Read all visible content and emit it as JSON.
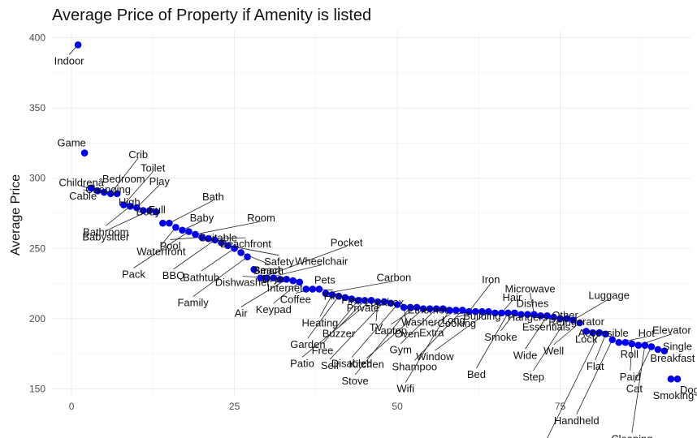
{
  "chart_data": {
    "type": "scatter",
    "title": "Average Price of Property if Amenity is listed",
    "xlabel": "",
    "ylabel": "Average Price",
    "xlim": [
      -3,
      95
    ],
    "ylim": [
      145,
      405
    ],
    "x_ticks": [
      0,
      25,
      50,
      75
    ],
    "y_ticks": [
      150,
      200,
      250,
      300,
      350,
      400
    ],
    "grid": true,
    "point_color": "#0000ee",
    "points": [
      {
        "x": 1,
        "y": 395,
        "label": "Indoor"
      },
      {
        "x": 2,
        "y": 318,
        "label": "Game"
      },
      {
        "x": 3,
        "y": 293,
        "label": "Changing"
      },
      {
        "x": 4,
        "y": 291,
        "label": "Childrenâ"
      },
      {
        "x": 5,
        "y": 290,
        "label": "Cable"
      },
      {
        "x": 6,
        "y": 289,
        "label": "Crib"
      },
      {
        "x": 7,
        "y": 289,
        "label": "Bedroom"
      },
      {
        "x": 8,
        "y": 281,
        "label": "Toilet"
      },
      {
        "x": 9,
        "y": 280,
        "label": "Bathroom"
      },
      {
        "x": 10,
        "y": 279,
        "label": "Play"
      },
      {
        "x": 11,
        "y": 277,
        "label": "High"
      },
      {
        "x": 12,
        "y": 277,
        "label": "Babysitter"
      },
      {
        "x": 13,
        "y": 276,
        "label": "Body"
      },
      {
        "x": 14,
        "y": 268,
        "label": "Full"
      },
      {
        "x": 15,
        "y": 268,
        "label": "Bath"
      },
      {
        "x": 16,
        "y": 265,
        "label": "Waterfront"
      },
      {
        "x": 17,
        "y": 263,
        "label": "Baby"
      },
      {
        "x": 18,
        "y": 262,
        "label": "Pack"
      },
      {
        "x": 19,
        "y": 260,
        "label": "Room"
      },
      {
        "x": 20,
        "y": 258,
        "label": "Pool"
      },
      {
        "x": 21,
        "y": 257,
        "label": "Beachfront"
      },
      {
        "x": 22,
        "y": 256,
        "label": "BBQ"
      },
      {
        "x": 23,
        "y": 254,
        "label": "Suitable"
      },
      {
        "x": 24,
        "y": 252,
        "label": "Safety"
      },
      {
        "x": 25,
        "y": 250,
        "label": "Bathtub"
      },
      {
        "x": 26,
        "y": 247,
        "label": "Beach"
      },
      {
        "x": 27,
        "y": 244,
        "label": "Family"
      },
      {
        "x": 28,
        "y": 235,
        "label": "Smart"
      },
      {
        "x": 29,
        "y": 229,
        "label": "Pocket"
      },
      {
        "x": 30,
        "y": 229,
        "label": "Wheelchair"
      },
      {
        "x": 31,
        "y": 229,
        "label": "Dishwasher"
      },
      {
        "x": 32,
        "y": 228,
        "label": "Internet"
      },
      {
        "x": 33,
        "y": 228,
        "label": "Air"
      },
      {
        "x": 34,
        "y": 227,
        "label": "Dryer"
      },
      {
        "x": 35,
        "y": 226,
        "label": "Keypad"
      },
      {
        "x": 36,
        "y": 221,
        "label": "Fire"
      },
      {
        "x": 37,
        "y": 221,
        "label": "Coffee"
      },
      {
        "x": 38,
        "y": 221,
        "label": "Pets"
      },
      {
        "x": 39,
        "y": 218,
        "label": "Carbon"
      },
      {
        "x": 40,
        "y": 217,
        "label": "Heating"
      },
      {
        "x": 41,
        "y": 216,
        "label": "Garden"
      },
      {
        "x": 42,
        "y": 215,
        "label": "Private"
      },
      {
        "x": 43,
        "y": 214,
        "label": "First"
      },
      {
        "x": 44,
        "y": 213,
        "label": "Free"
      },
      {
        "x": 45,
        "y": 213,
        "label": "Buzzer"
      },
      {
        "x": 46,
        "y": 213,
        "label": "Patio"
      },
      {
        "x": 47,
        "y": 212,
        "label": "TV"
      },
      {
        "x": 48,
        "y": 212,
        "label": "Self"
      },
      {
        "x": 49,
        "y": 211,
        "label": "Lockbox"
      },
      {
        "x": 50,
        "y": 210,
        "label": "Disabled"
      },
      {
        "x": 51,
        "y": 208,
        "label": "Oven"
      },
      {
        "x": 52,
        "y": 208,
        "label": "Stove"
      },
      {
        "x": 53,
        "y": 208,
        "label": "Laptop"
      },
      {
        "x": 54,
        "y": 207,
        "label": "Kitchen"
      },
      {
        "x": 55,
        "y": 207,
        "label": "Washer"
      },
      {
        "x": 56,
        "y": 207,
        "label": "Gym"
      },
      {
        "x": 57,
        "y": 207,
        "label": "Ethernet"
      },
      {
        "x": 58,
        "y": 206,
        "label": "Wifi"
      },
      {
        "x": 59,
        "y": 206,
        "label": "Extra"
      },
      {
        "x": 60,
        "y": 206,
        "label": "Shampoo"
      },
      {
        "x": 61,
        "y": 205,
        "label": "Iron"
      },
      {
        "x": 62,
        "y": 205,
        "label": "Cooking"
      },
      {
        "x": 63,
        "y": 205,
        "label": "Long"
      },
      {
        "x": 64,
        "y": 205,
        "label": "Window"
      },
      {
        "x": 65,
        "y": 204,
        "label": "Building"
      },
      {
        "x": 66,
        "y": 204,
        "label": "Hair"
      },
      {
        "x": 67,
        "y": 204,
        "label": "Bed"
      },
      {
        "x": 68,
        "y": 204,
        "label": "Smoke"
      },
      {
        "x": 69,
        "y": 203,
        "label": "Dishes"
      },
      {
        "x": 70,
        "y": 203,
        "label": "Hangers"
      },
      {
        "x": 71,
        "y": 203,
        "label": "Microwave"
      },
      {
        "x": 72,
        "y": 202,
        "label": "Essentials"
      },
      {
        "x": 73,
        "y": 202,
        "label": "Wide"
      },
      {
        "x": 74,
        "y": 201,
        "label": "Other"
      },
      {
        "x": 75,
        "y": 200,
        "label": "Refrigerator"
      },
      {
        "x": 76,
        "y": 200,
        "label": "Step"
      },
      {
        "x": 77,
        "y": 199,
        "label": "Luggage"
      },
      {
        "x": 78,
        "y": 197,
        "label": "Well"
      },
      {
        "x": 79,
        "y": 191,
        "label": "Lock"
      },
      {
        "x": 80,
        "y": 190,
        "label": "Accessible"
      },
      {
        "x": 81,
        "y": 190,
        "label": "Host"
      },
      {
        "x": 82,
        "y": 189,
        "label": "Flat"
      },
      {
        "x": 83,
        "y": 185,
        "label": "Handheld"
      },
      {
        "x": 84,
        "y": 183,
        "label": "Hot"
      },
      {
        "x": 85,
        "y": 183,
        "label": "Roll"
      },
      {
        "x": 86,
        "y": 182,
        "label": "Paid"
      },
      {
        "x": 87,
        "y": 181,
        "label": "Elevator"
      },
      {
        "x": 88,
        "y": 181,
        "label": "Cleaning"
      },
      {
        "x": 89,
        "y": 180,
        "label": "Cat"
      },
      {
        "x": 90,
        "y": 178,
        "label": "Breakfast"
      },
      {
        "x": 91,
        "y": 177,
        "label": "Single"
      },
      {
        "x": 92,
        "y": 157,
        "label": "Smoking"
      },
      {
        "x": 93,
        "y": 157,
        "label": "Dog"
      }
    ]
  }
}
